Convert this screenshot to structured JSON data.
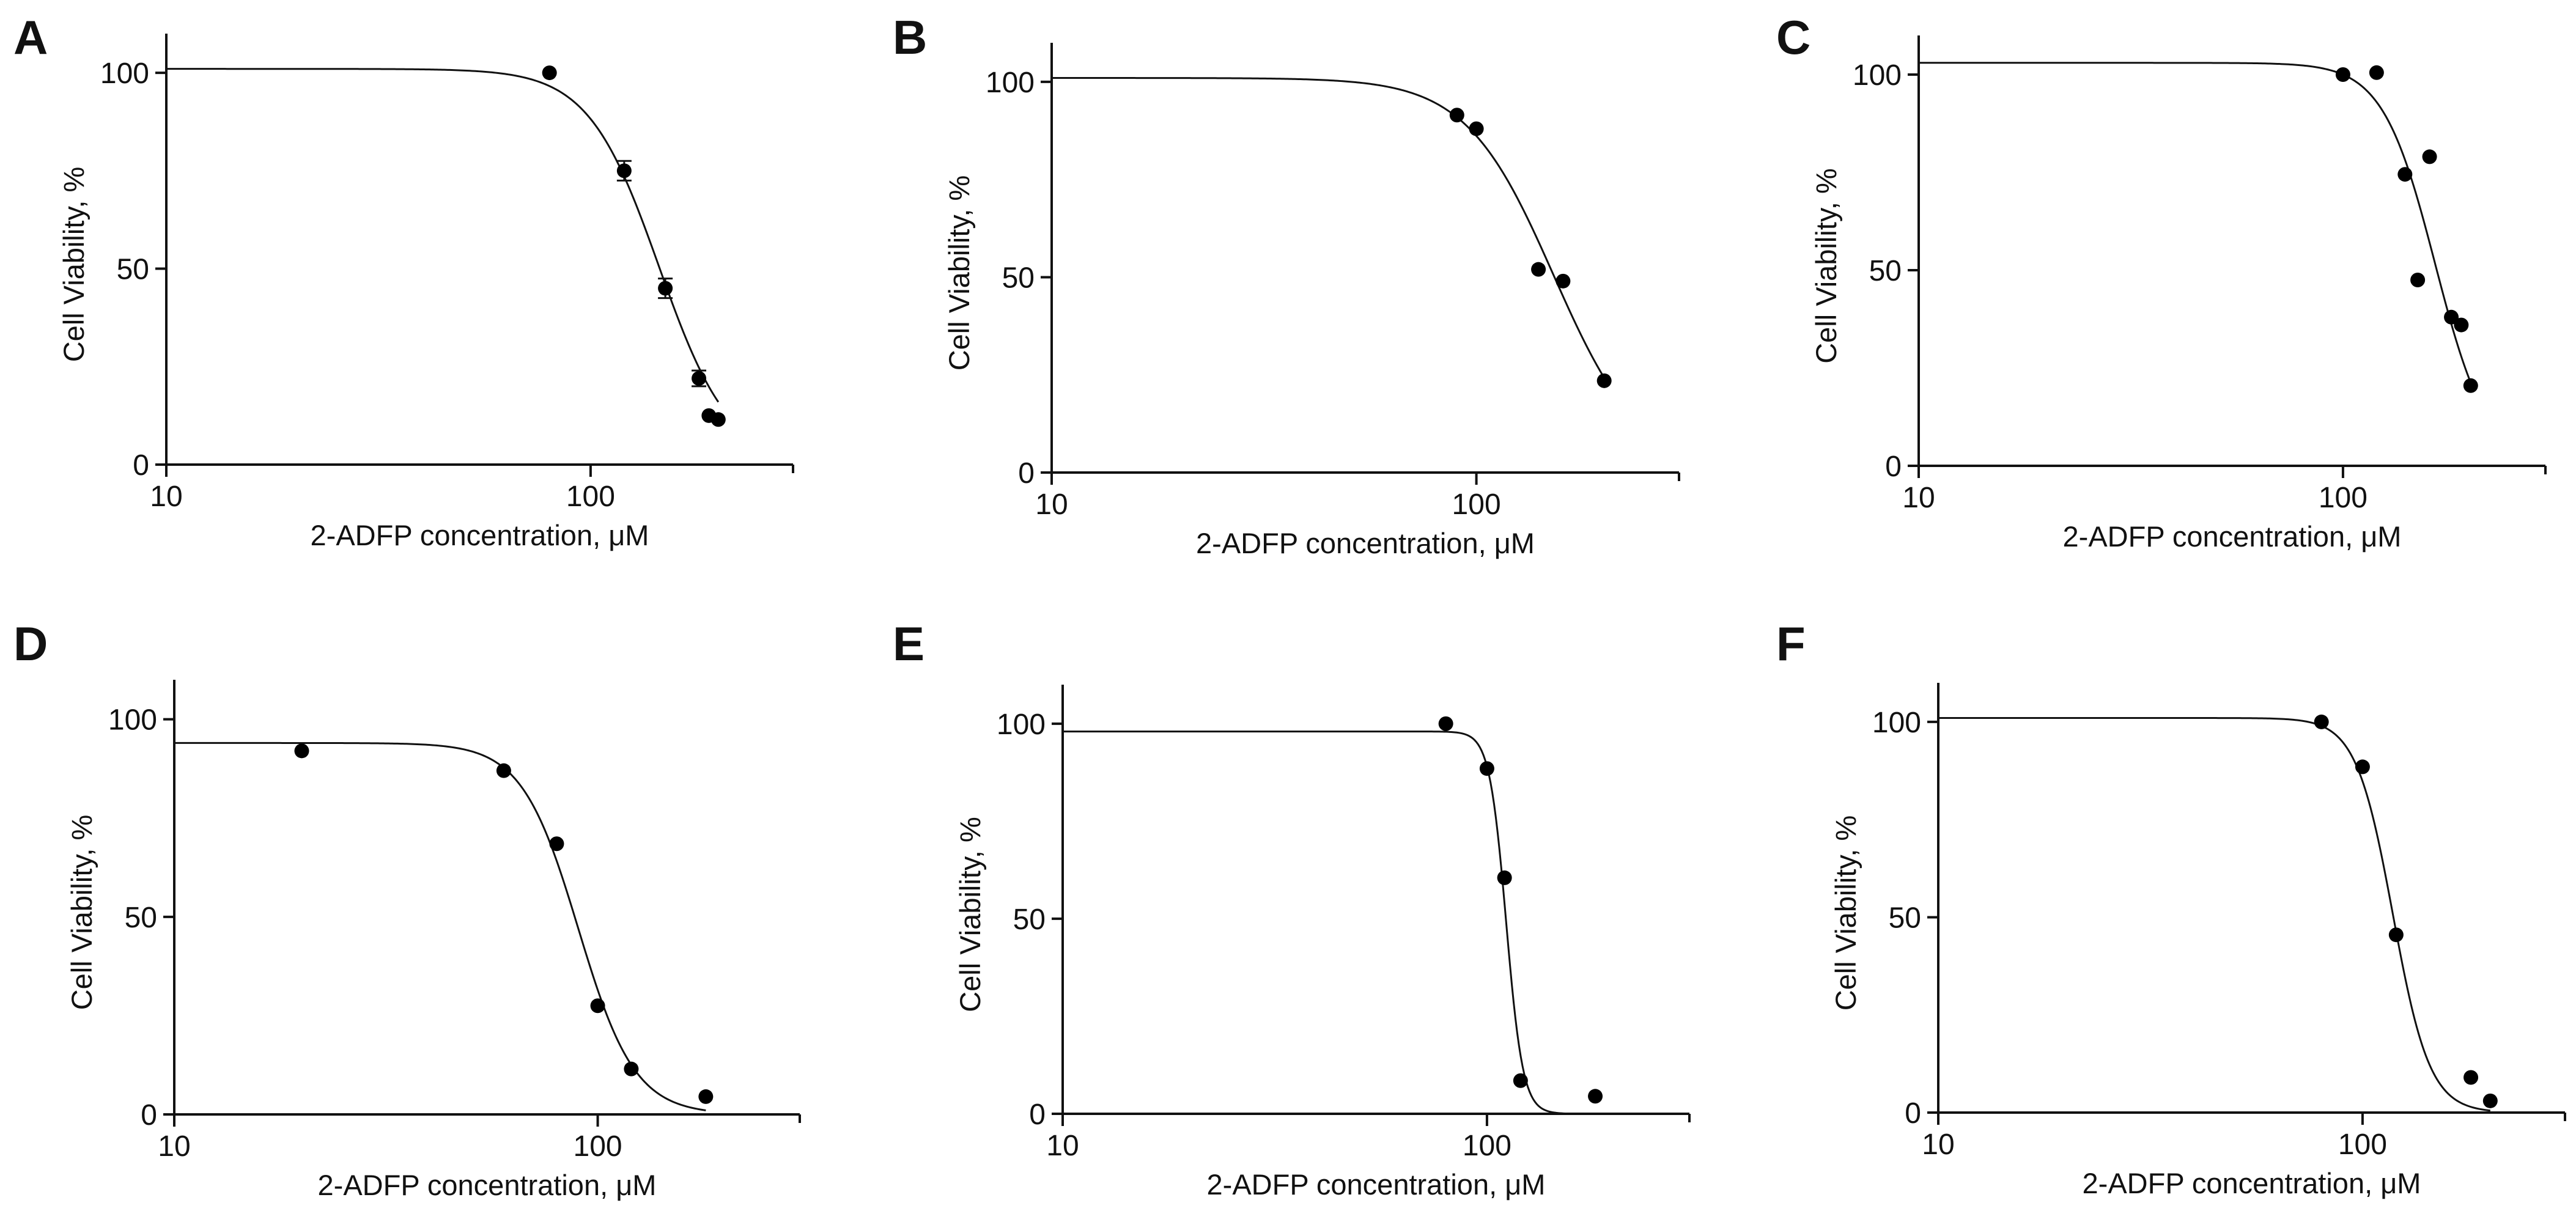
{
  "chart_data": [
    {
      "panel": "A",
      "type": "scatter",
      "xscale": "log",
      "xlabel": "2-ADFP concentration, μM",
      "ylabel": "Cell Viability, %",
      "xlim": [
        10,
        300
      ],
      "ylim": [
        0,
        110
      ],
      "xticks": [
        "10",
        "100"
      ],
      "yticks": [
        "0",
        "50",
        "100"
      ],
      "x": [
        80,
        120,
        150,
        180,
        190,
        200
      ],
      "y": [
        100,
        75,
        45,
        22,
        12.5,
        11.5
      ],
      "yerr": [
        0,
        2.5,
        2.5,
        2,
        0,
        0
      ],
      "fit": {
        "top": 101,
        "bottom": 0,
        "ec50": 145,
        "hill": 5.2
      }
    },
    {
      "panel": "B",
      "type": "scatter",
      "xscale": "log",
      "xlabel": "2-ADFP concentration, μM",
      "ylabel": "Cell Viability, %",
      "xlim": [
        10,
        300
      ],
      "ylim": [
        0,
        110
      ],
      "xticks": [
        "10",
        "100"
      ],
      "yticks": [
        "0",
        "50",
        "100"
      ],
      "x": [
        90,
        100,
        140,
        160,
        200
      ],
      "y": [
        91.5,
        88,
        52,
        49,
        23.5
      ],
      "fit": {
        "top": 101,
        "bottom": 0,
        "ec50": 152,
        "hill": 4.2
      }
    },
    {
      "panel": "C",
      "type": "scatter",
      "xscale": "log",
      "xlabel": "2-ADFP concentration, μM",
      "ylabel": "Cell Viability, %",
      "xlim": [
        10,
        300
      ],
      "ylim": [
        0,
        110
      ],
      "xticks": [
        "10",
        "100"
      ],
      "yticks": [
        "0",
        "50",
        "100"
      ],
      "x": [
        100,
        120,
        140,
        150,
        160,
        180,
        190,
        200
      ],
      "y": [
        100,
        100.5,
        74.5,
        47.5,
        79,
        38,
        36,
        20.5
      ],
      "fit": {
        "top": 103,
        "bottom": 0,
        "ec50": 165,
        "hill": 7
      }
    },
    {
      "panel": "D",
      "type": "scatter",
      "xscale": "log",
      "xlabel": "2-ADFP concentration, μM",
      "ylabel": "Cell Viability, %",
      "xlim": [
        10,
        300
      ],
      "ylim": [
        0,
        110
      ],
      "xticks": [
        "10",
        "100"
      ],
      "yticks": [
        "0",
        "50",
        "100"
      ],
      "x": [
        20,
        60,
        80,
        100,
        120,
        180
      ],
      "y": [
        92,
        87,
        68.5,
        27.5,
        11.5,
        4.5
      ],
      "fit": {
        "top": 94,
        "bottom": 0,
        "ec50": 90,
        "hill": 6.5
      }
    },
    {
      "panel": "E",
      "type": "scatter",
      "xscale": "log",
      "xlabel": "2-ADFP concentration, μM",
      "ylabel": "Cell Viability, %",
      "xlim": [
        10,
        300
      ],
      "ylim": [
        0,
        110
      ],
      "xticks": [
        "10",
        "100"
      ],
      "yticks": [
        "0",
        "50",
        "100"
      ],
      "x": [
        80,
        100,
        110,
        120,
        180
      ],
      "y": [
        100,
        88.5,
        60.5,
        8.5,
        4.5
      ],
      "fit": {
        "top": 98,
        "bottom": 0,
        "ec50": 111,
        "hill": 22
      }
    },
    {
      "panel": "F",
      "type": "scatter",
      "xscale": "log",
      "xlabel": "2-ADFP concentration, μM",
      "ylabel": "Cell Viability, %",
      "xlim": [
        10,
        300
      ],
      "ylim": [
        0,
        110
      ],
      "xticks": [
        "10",
        "100"
      ],
      "yticks": [
        "0",
        "50",
        "100"
      ],
      "x": [
        80,
        100,
        120,
        180,
        200
      ],
      "y": [
        100,
        88.5,
        45.5,
        9,
        3
      ],
      "fit": {
        "top": 101,
        "bottom": 0,
        "ec50": 118,
        "hill": 10
      }
    }
  ]
}
